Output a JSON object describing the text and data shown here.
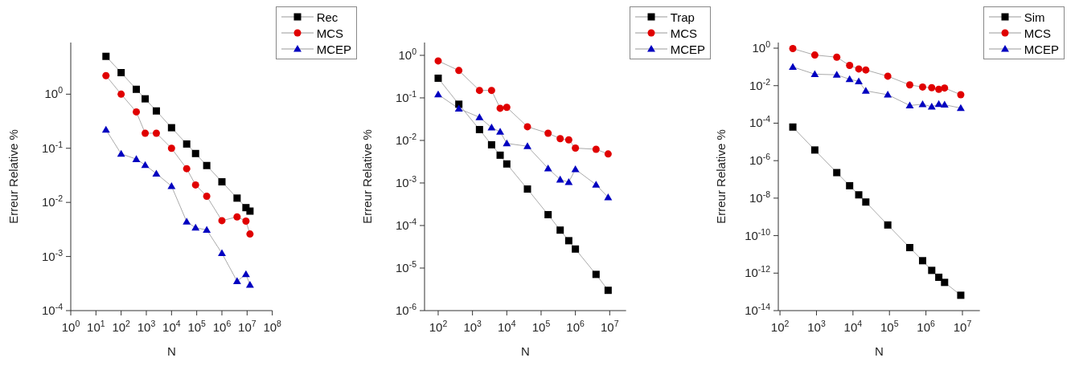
{
  "chart_data": [
    {
      "type": "line",
      "xlabel": "N",
      "ylabel": "Erreur Relative %",
      "log": "xy",
      "grid": false,
      "legend": "top right",
      "xlim": [
        1,
        100000000
      ],
      "xticks": [
        {
          "value": 1,
          "label": "10$^{0}$"
        },
        {
          "value": 10,
          "label": "10$^{1}$"
        },
        {
          "value": 100,
          "label": "10$^{2}$"
        },
        {
          "value": 1000,
          "label": "10$^{3}$"
        },
        {
          "value": 10000,
          "label": "10$^{4}$"
        },
        {
          "value": 100000,
          "label": "10$^{5}$"
        },
        {
          "value": 1000000,
          "label": "10$^{6}$"
        },
        {
          "value": 10000000,
          "label": "10$^{7}$"
        },
        {
          "value": 100000000,
          "label": "10$^{8}$"
        }
      ],
      "ylim": [
        0.0001,
        9
      ],
      "yticks": [
        {
          "value": 0.0001,
          "label": "10$^{-4}$"
        },
        {
          "value": 0.001,
          "label": "10$^{-3}$"
        },
        {
          "value": 0.01,
          "label": "10$^{-2}$"
        },
        {
          "value": 0.1,
          "label": "10$^{-1}$"
        },
        {
          "value": 1,
          "label": "10$^{0}$"
        }
      ],
      "x": [
        25,
        100,
        400,
        900,
        2500,
        10000,
        40000,
        90000,
        250000,
        1000000,
        4000000,
        9000000,
        13000000
      ],
      "series": [
        {
          "name": "Rec",
          "color": "#000000",
          "marker": "square",
          "values": [
            5.0,
            2.5,
            1.23,
            0.82,
            0.49,
            0.24,
            0.12,
            0.08,
            0.048,
            0.024,
            0.012,
            0.008,
            0.0069
          ]
        },
        {
          "name": "MCS",
          "color": "#e00000",
          "marker": "circle",
          "values": [
            2.2,
            1.0,
            0.47,
            0.19,
            0.19,
            0.1,
            0.042,
            0.021,
            0.013,
            0.0046,
            0.0054,
            0.0045,
            0.0026
          ]
        },
        {
          "name": "MCEP",
          "color": "#0000c0",
          "marker": "triangle",
          "values": [
            0.22,
            0.079,
            0.063,
            0.049,
            0.034,
            0.02,
            0.0044,
            0.0034,
            0.0031,
            0.00115,
            0.00035,
            0.00047,
            0.0003
          ]
        }
      ]
    },
    {
      "type": "line",
      "xlabel": "N",
      "ylabel": "Erreur Relative %",
      "log": "xy",
      "grid": false,
      "legend": "top right",
      "xlim": [
        40,
        30000000
      ],
      "xticks": [
        {
          "value": 100,
          "label": "10$^{2}$"
        },
        {
          "value": 1000,
          "label": "10$^{3}$"
        },
        {
          "value": 10000,
          "label": "10$^{4}$"
        },
        {
          "value": 100000,
          "label": "10$^{5}$"
        },
        {
          "value": 1000000,
          "label": "10$^{6}$"
        },
        {
          "value": 10000000,
          "label": "10$^{7}$"
        }
      ],
      "ylim": [
        1e-06,
        2
      ],
      "yticks": [
        {
          "value": 1e-06,
          "label": "10$^{-6}$"
        },
        {
          "value": 1e-05,
          "label": "10$^{-5}$"
        },
        {
          "value": 0.0001,
          "label": "10$^{-4}$"
        },
        {
          "value": 0.001,
          "label": "10$^{-3}$"
        },
        {
          "value": 0.01,
          "label": "10$^{-2}$"
        },
        {
          "value": 0.1,
          "label": "10$^{-1}$"
        },
        {
          "value": 1,
          "label": "10$^{0}$"
        }
      ],
      "x": [
        100,
        400,
        1600,
        3600,
        6400,
        10000,
        40000,
        160000,
        360000,
        640000,
        1000000,
        4000000,
        9000000
      ],
      "series": [
        {
          "name": "Trap",
          "color": "#000000",
          "marker": "square",
          "values": [
            0.29,
            0.071,
            0.018,
            0.0079,
            0.0045,
            0.0028,
            0.00072,
            0.00018,
            7.8e-05,
            4.4e-05,
            2.8e-05,
            7.1e-06,
            3e-06
          ]
        },
        {
          "name": "MCS",
          "color": "#e00000",
          "marker": "circle",
          "values": [
            0.74,
            0.44,
            0.15,
            0.15,
            0.057,
            0.06,
            0.021,
            0.0148,
            0.011,
            0.0103,
            0.0066,
            0.0062,
            0.0048
          ]
        },
        {
          "name": "MCEP",
          "color": "#0000c0",
          "marker": "triangle",
          "values": [
            0.12,
            0.056,
            0.035,
            0.02,
            0.016,
            0.0085,
            0.0073,
            0.0022,
            0.0012,
            0.00105,
            0.0021,
            0.00091,
            0.00046
          ]
        }
      ]
    },
    {
      "type": "line",
      "xlabel": "N",
      "ylabel": "Erreur Relative %",
      "log": "xy",
      "grid": false,
      "legend": "top right",
      "xlim": [
        90,
        30000000
      ],
      "xticks": [
        {
          "value": 100,
          "label": "10$^{2}$"
        },
        {
          "value": 1000,
          "label": "10$^{3}$"
        },
        {
          "value": 10000,
          "label": "10$^{4}$"
        },
        {
          "value": 100000,
          "label": "10$^{5}$"
        },
        {
          "value": 1000000,
          "label": "10$^{6}$"
        },
        {
          "value": 10000000,
          "label": "10$^{7}$"
        }
      ],
      "ylim": [
        1e-14,
        2
      ],
      "yticks": [
        {
          "value": 1e-14,
          "label": "10$^{-14}$"
        },
        {
          "value": 1e-12,
          "label": "10$^{-12}$"
        },
        {
          "value": 1e-10,
          "label": "10$^{-10}$"
        },
        {
          "value": 1e-08,
          "label": "10$^{-8}$"
        },
        {
          "value": 1e-06,
          "label": "10$^{-6}$"
        },
        {
          "value": 0.0001,
          "label": "10$^{-4}$"
        },
        {
          "value": 0.01,
          "label": "10$^{-2}$"
        },
        {
          "value": 1,
          "label": "10$^{0}$"
        }
      ],
      "x": [
        225,
        900,
        3600,
        8100,
        14400,
        22500,
        90000,
        360000,
        810000,
        1440000,
        2250000,
        3240000,
        9000000
      ],
      "series": [
        {
          "name": "Sim",
          "color": "#000000",
          "marker": "square",
          "values": [
            6.2e-05,
            3.7e-06,
            2.3e-07,
            4.6e-08,
            1.5e-08,
            6.2e-09,
            3.7e-10,
            2.3e-11,
            4.6e-12,
            1.4e-12,
            6e-13,
            3.2e-13,
            6.6e-14
          ]
        },
        {
          "name": "MCS",
          "color": "#e00000",
          "marker": "circle",
          "values": [
            0.95,
            0.43,
            0.33,
            0.12,
            0.078,
            0.069,
            0.032,
            0.011,
            0.0085,
            0.0078,
            0.0064,
            0.0075,
            0.0033
          ]
        },
        {
          "name": "MCEP",
          "color": "#0000c0",
          "marker": "triangle",
          "values": [
            0.1,
            0.041,
            0.038,
            0.022,
            0.017,
            0.0053,
            0.0033,
            0.00088,
            0.00102,
            0.00075,
            0.00105,
            0.00096,
            0.00064
          ]
        }
      ]
    }
  ]
}
